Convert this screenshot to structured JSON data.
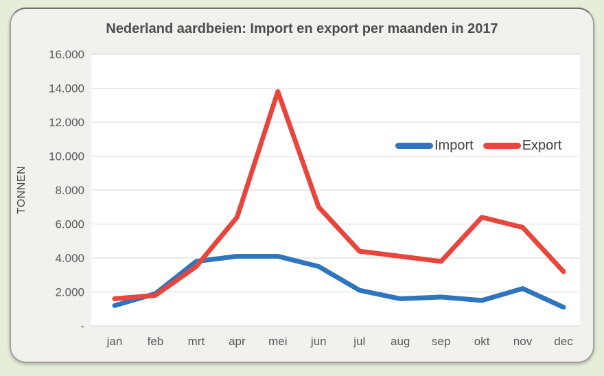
{
  "page": {
    "background_color": "#e6edd9",
    "card_color": "#f2f1ee"
  },
  "chart_data": {
    "type": "line",
    "title": "Nederland aardbeien: Import en export per maanden in 2017",
    "ylabel": "TONNEN",
    "xlabel": "",
    "categories": [
      "jan",
      "feb",
      "mrt",
      "apr",
      "mei",
      "jun",
      "jul",
      "aug",
      "sep",
      "okt",
      "nov",
      "dec"
    ],
    "series": [
      {
        "name": "Import",
        "color": "#2E75BE",
        "values": [
          1200,
          1900,
          3800,
          4100,
          4100,
          3500,
          2100,
          1600,
          1700,
          1500,
          2200,
          1100
        ]
      },
      {
        "name": "Export",
        "color": "#E8453C",
        "values": [
          1600,
          1800,
          3500,
          6400,
          13800,
          7000,
          4400,
          4100,
          3800,
          6400,
          5800,
          3200
        ]
      }
    ],
    "ylim": [
      0,
      16000
    ],
    "ytick_step": 2000,
    "ytick_labels_bottom_to_top": [
      "-",
      "2.000",
      "4.000",
      "6.000",
      "8.000",
      "10.000",
      "12.000",
      "14.000",
      "16.000"
    ],
    "grid": true,
    "gridline_color": "#d6d6d6",
    "plot_background": "#ffffff",
    "tick_label_color": "#595959",
    "legend_position": "inside-right",
    "legend_entries": [
      "Import",
      "Export"
    ]
  }
}
